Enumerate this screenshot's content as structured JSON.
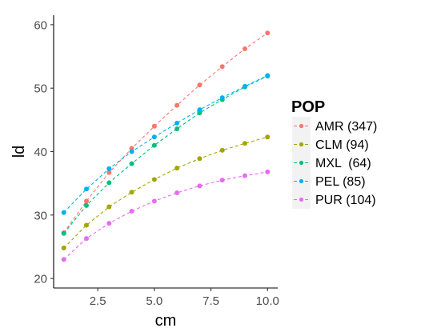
{
  "chart_data": {
    "type": "line",
    "xlabel": "cm",
    "ylabel": "ld",
    "xlim": [
      0.55,
      10.45
    ],
    "ylim": [
      18.5,
      61.5
    ],
    "xticks": [
      2.5,
      5.0,
      7.5,
      10.0
    ],
    "xtick_labels": [
      "2.5",
      "5.0",
      "7.5",
      "10.0"
    ],
    "yticks": [
      20,
      30,
      40,
      50,
      60
    ],
    "ytick_labels": [
      "20",
      "30",
      "40",
      "50",
      "60"
    ],
    "grid": false,
    "line_style": "dashed",
    "markers": true,
    "legend": {
      "title": "POP",
      "position": "right",
      "entries": [
        "AMR (347)",
        "CLM (94)",
        "MXL  (64)",
        "PEL (85)",
        "PUR (104)"
      ]
    },
    "x": [
      1,
      2,
      3,
      4,
      5,
      6,
      7,
      8,
      9,
      10
    ],
    "series": [
      {
        "name": "AMR (347)",
        "color": "#F8766D",
        "values": [
          27.2,
          32.2,
          36.7,
          40.5,
          44.0,
          47.3,
          50.5,
          53.4,
          56.2,
          58.7
        ]
      },
      {
        "name": "CLM (94)",
        "color": "#A3A500",
        "values": [
          24.8,
          28.4,
          31.3,
          33.6,
          35.6,
          37.4,
          38.9,
          40.2,
          41.3,
          42.3
        ]
      },
      {
        "name": "MXL  (64)",
        "color": "#00BF7D",
        "values": [
          27.1,
          31.5,
          35.1,
          38.1,
          41.0,
          43.6,
          46.1,
          48.2,
          50.2,
          51.9
        ]
      },
      {
        "name": "PEL (85)",
        "color": "#00B0F6",
        "values": [
          30.4,
          34.1,
          37.3,
          40.0,
          42.3,
          44.5,
          46.6,
          48.5,
          50.3,
          52.0
        ]
      },
      {
        "name": "PUR (104)",
        "color": "#E76BF3",
        "values": [
          23.0,
          26.3,
          28.7,
          30.6,
          32.2,
          33.5,
          34.6,
          35.5,
          36.2,
          36.8
        ]
      }
    ]
  }
}
